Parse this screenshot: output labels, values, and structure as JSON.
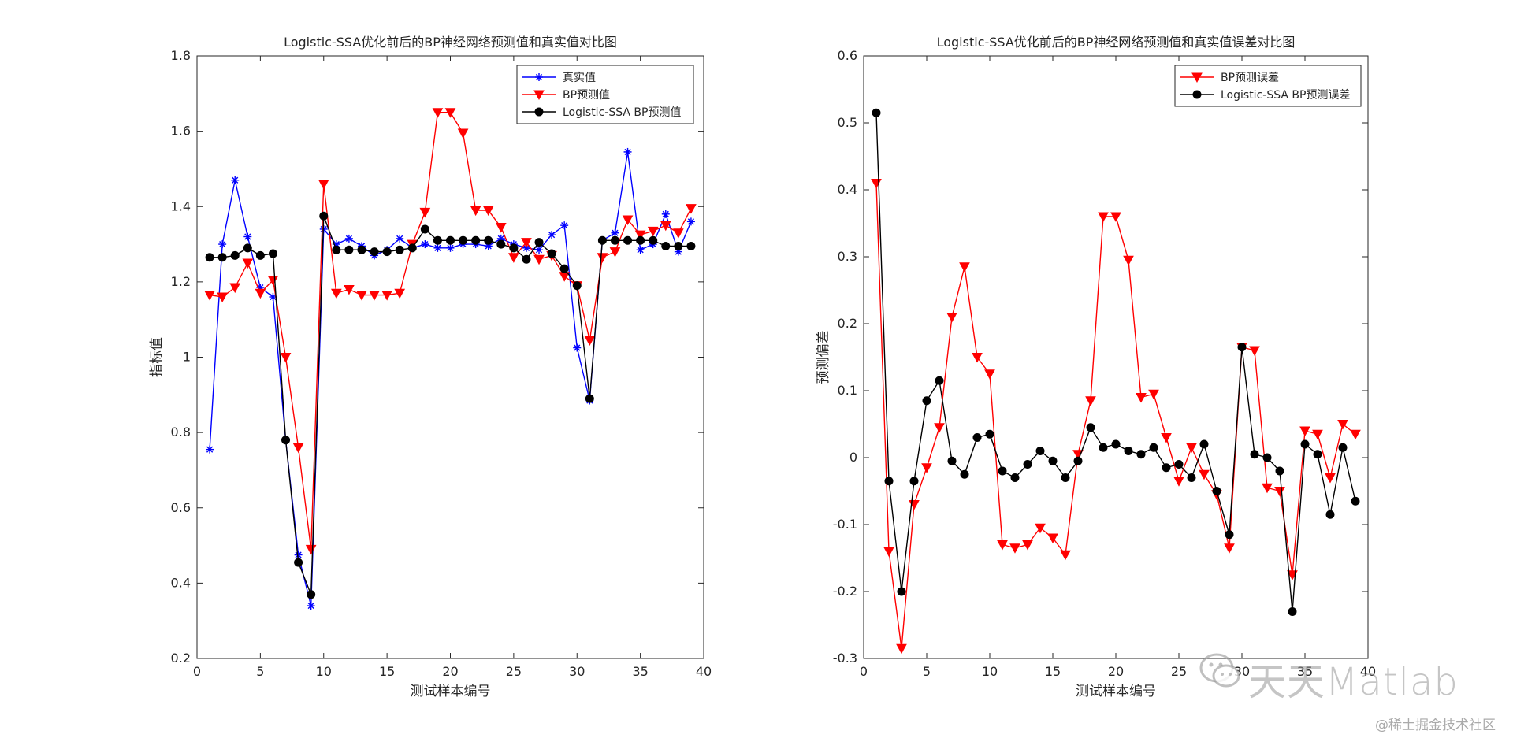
{
  "chart_data": [
    {
      "type": "line",
      "title": "Logistic-SSA优化前后的BP神经网络预测值和真实值对比图",
      "xlabel": "测试样本编号",
      "ylabel": "指标值",
      "xlim": [
        0,
        40
      ],
      "ylim": [
        0.2,
        1.8
      ],
      "xticks": [
        0,
        5,
        10,
        15,
        20,
        25,
        30,
        35,
        40
      ],
      "yticks": [
        0.2,
        0.4,
        0.6,
        0.8,
        1,
        1.2,
        1.4,
        1.6,
        1.8
      ],
      "legend_position": "top-right",
      "grid": false,
      "x": [
        1,
        2,
        3,
        4,
        5,
        6,
        7,
        8,
        9,
        10,
        11,
        12,
        13,
        14,
        15,
        16,
        17,
        18,
        19,
        20,
        21,
        22,
        23,
        24,
        25,
        26,
        27,
        28,
        29,
        30,
        31,
        32,
        33,
        34,
        35,
        36,
        37,
        38,
        39
      ],
      "series": [
        {
          "name": "真实值",
          "color": "#0000ff",
          "marker": "asterisk",
          "values": [
            0.755,
            1.3,
            1.47,
            1.32,
            1.185,
            1.16,
            0.78,
            0.475,
            0.34,
            1.34,
            1.3,
            1.315,
            1.295,
            1.27,
            1.285,
            1.315,
            1.29,
            1.3,
            1.29,
            1.29,
            1.3,
            1.3,
            1.295,
            1.315,
            1.3,
            1.29,
            1.285,
            1.325,
            1.35,
            1.025,
            0.885,
            1.31,
            1.33,
            1.545,
            1.285,
            1.3,
            1.38,
            1.28,
            1.36
          ]
        },
        {
          "name": "BP预测值",
          "color": "#ff0000",
          "marker": "triangle-down",
          "values": [
            1.165,
            1.16,
            1.185,
            1.25,
            1.17,
            1.205,
            1.0,
            0.76,
            0.49,
            1.46,
            1.17,
            1.18,
            1.165,
            1.165,
            1.165,
            1.17,
            1.3,
            1.385,
            1.65,
            1.65,
            1.595,
            1.39,
            1.39,
            1.345,
            1.265,
            1.305,
            1.26,
            1.27,
            1.215,
            1.19,
            1.045,
            1.265,
            1.28,
            1.365,
            1.325,
            1.335,
            1.35,
            1.33,
            1.395
          ]
        },
        {
          "name": "Logistic-SSA BP预测值",
          "color": "#000000",
          "marker": "circle",
          "values": [
            1.265,
            1.265,
            1.27,
            1.29,
            1.27,
            1.275,
            0.78,
            0.455,
            0.37,
            1.375,
            1.285,
            1.285,
            1.285,
            1.28,
            1.28,
            1.285,
            1.29,
            1.34,
            1.31,
            1.31,
            1.31,
            1.31,
            1.31,
            1.3,
            1.29,
            1.26,
            1.305,
            1.275,
            1.235,
            1.19,
            0.89,
            1.31,
            1.31,
            1.31,
            1.31,
            1.31,
            1.295,
            1.295,
            1.295
          ]
        }
      ]
    },
    {
      "type": "line",
      "title": "Logistic-SSA优化前后的BP神经网络预测值和真实值误差对比图",
      "xlabel": "测试样本编号",
      "ylabel": "预测偏差",
      "xlim": [
        0,
        40
      ],
      "ylim": [
        -0.3,
        0.6
      ],
      "xticks": [
        0,
        5,
        10,
        15,
        20,
        25,
        30,
        35,
        40
      ],
      "yticks": [
        -0.3,
        -0.2,
        -0.1,
        0,
        0.1,
        0.2,
        0.3,
        0.4,
        0.5,
        0.6
      ],
      "legend_position": "top-right",
      "grid": false,
      "x": [
        1,
        2,
        3,
        4,
        5,
        6,
        7,
        8,
        9,
        10,
        11,
        12,
        13,
        14,
        15,
        16,
        17,
        18,
        19,
        20,
        21,
        22,
        23,
        24,
        25,
        26,
        27,
        28,
        29,
        30,
        31,
        32,
        33,
        34,
        35,
        36,
        37,
        38,
        39
      ],
      "series": [
        {
          "name": "BP预测误差",
          "color": "#ff0000",
          "marker": "triangle-down",
          "values": [
            0.41,
            -0.14,
            -0.285,
            -0.07,
            -0.015,
            0.045,
            0.21,
            0.285,
            0.15,
            0.125,
            -0.13,
            -0.135,
            -0.13,
            -0.105,
            -0.12,
            -0.145,
            0.005,
            0.085,
            0.36,
            0.36,
            0.295,
            0.09,
            0.095,
            0.03,
            -0.035,
            0.015,
            -0.025,
            -0.055,
            -0.135,
            0.165,
            0.16,
            -0.045,
            -0.05,
            -0.175,
            0.04,
            0.035,
            -0.03,
            0.05,
            0.035
          ]
        },
        {
          "name": "Logistic-SSA BP预测误差",
          "color": "#000000",
          "marker": "circle",
          "values": [
            0.515,
            -0.035,
            -0.2,
            -0.035,
            0.085,
            0.115,
            -0.005,
            -0.025,
            0.03,
            0.035,
            -0.02,
            -0.03,
            -0.01,
            0.01,
            -0.005,
            -0.03,
            -0.005,
            0.045,
            0.015,
            0.02,
            0.01,
            0.005,
            0.015,
            -0.015,
            -0.01,
            -0.03,
            0.02,
            -0.05,
            -0.115,
            0.165,
            0.005,
            0,
            -0.02,
            -0.23,
            0.02,
            0.005,
            -0.085,
            0.015,
            -0.065
          ]
        }
      ]
    }
  ],
  "watermark": {
    "text": "天天Matlab"
  },
  "footer_credit": "@稀土掘金技术社区"
}
